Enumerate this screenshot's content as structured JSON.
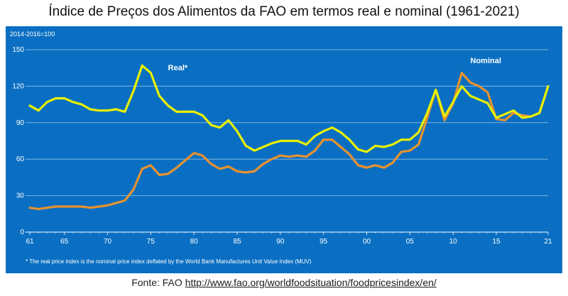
{
  "title": "Índice de Preços dos Alimentos da FAO em termos real e nominal  (1961-2021)",
  "source": {
    "label": "Fonte: FAO",
    "url": "http://www.fao.org/worldfoodsituation/foodpricesindex/en/"
  },
  "colors": {
    "background": "#0a6fc2",
    "grid": "#7fb3e0",
    "real": "#e8f000",
    "nominal": "#e8922e",
    "text": "#ffffff"
  },
  "chart_data": {
    "type": "line",
    "title": "Índice de Preços dos Alimentos da FAO em termos real e nominal  (1961-2021)",
    "unit_label": "2014-2016=100",
    "footnote": "* The real price index is the nominal price index deflated by the World Bank Manufactures Unit Value Index (MUV)",
    "xlim": [
      1961,
      2021
    ],
    "ylim": [
      0,
      150
    ],
    "y_ticks": [
      0,
      30,
      60,
      90,
      120,
      150
    ],
    "x_ticks": [
      {
        "year": 1961,
        "label": "61"
      },
      {
        "year": 1965,
        "label": "65"
      },
      {
        "year": 1970,
        "label": "70"
      },
      {
        "year": 1975,
        "label": "75"
      },
      {
        "year": 1980,
        "label": "80"
      },
      {
        "year": 1985,
        "label": "85"
      },
      {
        "year": 1990,
        "label": "90"
      },
      {
        "year": 1995,
        "label": "95"
      },
      {
        "year": 2000,
        "label": "00"
      },
      {
        "year": 2005,
        "label": "05"
      },
      {
        "year": 2010,
        "label": "10"
      },
      {
        "year": 2015,
        "label": "15"
      },
      {
        "year": 2021,
        "label": "21"
      }
    ],
    "grid": true,
    "x": [
      1961,
      1962,
      1963,
      1964,
      1965,
      1966,
      1967,
      1968,
      1969,
      1970,
      1971,
      1972,
      1973,
      1974,
      1975,
      1976,
      1977,
      1978,
      1979,
      1980,
      1981,
      1982,
      1983,
      1984,
      1985,
      1986,
      1987,
      1988,
      1989,
      1990,
      1991,
      1992,
      1993,
      1994,
      1995,
      1996,
      1997,
      1998,
      1999,
      2000,
      2001,
      2002,
      2003,
      2004,
      2005,
      2006,
      2007,
      2008,
      2009,
      2010,
      2011,
      2012,
      2013,
      2014,
      2015,
      2016,
      2017,
      2018,
      2019,
      2020,
      2021
    ],
    "series": [
      {
        "name": "Real*",
        "values": [
          104,
          100,
          107,
          110,
          110,
          107,
          105,
          101,
          100,
          100,
          101,
          99,
          116,
          137,
          131,
          112,
          104,
          99,
          99,
          99,
          96,
          88,
          86,
          92,
          83,
          71,
          67,
          70,
          73,
          75,
          75,
          75,
          72,
          79,
          83,
          86,
          82,
          76,
          68,
          66,
          71,
          70,
          72,
          76,
          76,
          82,
          98,
          117,
          95,
          107,
          120,
          112,
          109,
          106,
          94,
          97,
          100,
          94,
          95,
          98,
          120
        ]
      },
      {
        "name": "Nominal",
        "values": [
          20,
          19,
          20,
          21,
          21,
          21,
          21,
          20,
          21,
          22,
          24,
          26,
          35,
          52,
          55,
          47,
          48,
          53,
          59,
          65,
          63,
          56,
          52,
          54,
          50,
          49,
          50,
          56,
          60,
          63,
          62,
          63,
          62,
          67,
          76,
          76,
          70,
          64,
          55,
          53,
          55,
          53,
          57,
          66,
          67,
          72,
          94,
          117,
          92,
          106,
          131,
          123,
          120,
          115,
          93,
          92,
          98,
          96,
          95,
          98,
          120
        ]
      }
    ],
    "annotations": [
      {
        "text": "Real*",
        "x": 1977,
        "y": 133
      },
      {
        "text": "Nominal",
        "x": 2012,
        "y": 139
      }
    ]
  }
}
